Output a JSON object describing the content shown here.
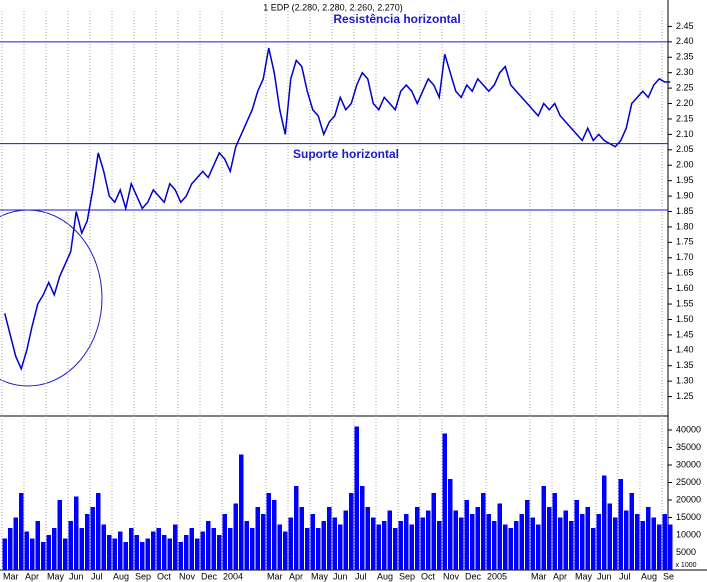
{
  "chart_data": {
    "type": "line",
    "title": "1 EDP (2.280, 2.280, 2.260, 2.270)",
    "categories": [
      "Mar",
      null,
      null,
      null,
      "Apr",
      null,
      null,
      null,
      "May",
      null,
      null,
      null,
      "Jun",
      null,
      null,
      null,
      "Jul",
      null,
      null,
      null,
      "Aug",
      null,
      null,
      null,
      "Sep",
      null,
      null,
      null,
      "Oct",
      null,
      null,
      null,
      "Nov",
      null,
      null,
      null,
      "Dec",
      null,
      null,
      null,
      "2004",
      null,
      null,
      null,
      null,
      null,
      null,
      null,
      "Mar",
      null,
      null,
      null,
      "Apr",
      null,
      null,
      null,
      "May",
      null,
      null,
      null,
      "Jun",
      null,
      null,
      null,
      "Jul",
      null,
      null,
      null,
      "Aug",
      null,
      null,
      null,
      "Sep",
      null,
      null,
      null,
      "Oct",
      null,
      null,
      null,
      "Nov",
      null,
      null,
      null,
      "Dec",
      null,
      null,
      null,
      "2005",
      null,
      null,
      null,
      null,
      null,
      null,
      null,
      "Mar",
      null,
      null,
      null,
      "Apr",
      null,
      null,
      null,
      "May",
      null,
      null,
      null,
      "Jun",
      null,
      null,
      null,
      "Jul",
      null,
      null,
      null,
      "Aug",
      null,
      null,
      null,
      "Se",
      null
    ],
    "series": [
      {
        "name": "EDP",
        "color": "#0000cc",
        "values": [
          1.52,
          1.45,
          1.38,
          1.34,
          1.4,
          1.48,
          1.55,
          1.58,
          1.62,
          1.58,
          1.64,
          1.68,
          1.72,
          1.85,
          1.78,
          1.82,
          1.92,
          2.04,
          1.98,
          1.9,
          1.88,
          1.92,
          1.86,
          1.94,
          1.9,
          1.86,
          1.88,
          1.92,
          1.9,
          1.88,
          1.94,
          1.92,
          1.88,
          1.9,
          1.94,
          1.96,
          1.98,
          1.96,
          2.0,
          2.04,
          2.02,
          1.98,
          2.06,
          2.1,
          2.14,
          2.18,
          2.24,
          2.28,
          2.38,
          2.3,
          2.18,
          2.1,
          2.28,
          2.34,
          2.32,
          2.24,
          2.18,
          2.16,
          2.1,
          2.14,
          2.16,
          2.22,
          2.18,
          2.2,
          2.26,
          2.3,
          2.28,
          2.2,
          2.18,
          2.22,
          2.2,
          2.18,
          2.24,
          2.26,
          2.24,
          2.2,
          2.24,
          2.28,
          2.26,
          2.22,
          2.36,
          2.3,
          2.24,
          2.22,
          2.26,
          2.24,
          2.28,
          2.26,
          2.24,
          2.26,
          2.3,
          2.32,
          2.26,
          2.24,
          2.22,
          2.2,
          2.18,
          2.16,
          2.2,
          2.18,
          2.2,
          2.16,
          2.14,
          2.12,
          2.1,
          2.08,
          2.12,
          2.08,
          2.1,
          2.08,
          2.07,
          2.06,
          2.08,
          2.12,
          2.2,
          2.22,
          2.24,
          2.22,
          2.26,
          2.28,
          2.27,
          2.27
        ]
      },
      {
        "name": "Volume",
        "color": "#0000ff",
        "axis": "y2",
        "values": [
          9000,
          12000,
          15000,
          22000,
          11000,
          9000,
          14000,
          8000,
          10000,
          12000,
          20000,
          9000,
          14000,
          21000,
          12000,
          16000,
          18000,
          22000,
          13000,
          10000,
          9000,
          11000,
          8000,
          12000,
          10000,
          8000,
          9000,
          11000,
          12000,
          10000,
          9000,
          13000,
          8000,
          10000,
          12000,
          9000,
          11000,
          14000,
          12000,
          10000,
          16000,
          12000,
          19000,
          33000,
          14000,
          12000,
          18000,
          16000,
          22000,
          20000,
          13000,
          11000,
          15000,
          24000,
          18000,
          12000,
          16000,
          12000,
          14000,
          18000,
          15000,
          13000,
          17000,
          22000,
          41000,
          24000,
          18000,
          15000,
          13000,
          14000,
          17000,
          12000,
          14000,
          16000,
          13000,
          18000,
          15000,
          17000,
          22000,
          14000,
          39000,
          26000,
          17000,
          15000,
          20000,
          16000,
          18000,
          22000,
          16000,
          14000,
          19000,
          13000,
          12000,
          14000,
          16000,
          20000,
          15000,
          13000,
          24000,
          18000,
          22000,
          15000,
          17000,
          14000,
          20000,
          16000,
          18000,
          12000,
          16000,
          27000,
          19000,
          15000,
          26000,
          17000,
          22000,
          16000,
          14000,
          18000,
          15000,
          13000,
          16000,
          13000
        ]
      }
    ],
    "ylim": [
      1.2,
      2.5
    ],
    "yticks": [
      {
        "value": 1.25,
        "label": "1.25"
      },
      {
        "value": 1.3,
        "label": "1.30"
      },
      {
        "value": 1.35,
        "label": "1.35"
      },
      {
        "value": 1.4,
        "label": "1.40"
      },
      {
        "value": 1.45,
        "label": "1.45"
      },
      {
        "value": 1.5,
        "label": "1.50"
      },
      {
        "value": 1.55,
        "label": "1.55"
      },
      {
        "value": 1.6,
        "label": "1.60"
      },
      {
        "value": 1.65,
        "label": "1.65"
      },
      {
        "value": 1.7,
        "label": "1.70"
      },
      {
        "value": 1.75,
        "label": "1.75"
      },
      {
        "value": 1.8,
        "label": "1.80"
      },
      {
        "value": 1.85,
        "label": "1.85"
      },
      {
        "value": 1.9,
        "label": "1.90"
      },
      {
        "value": 1.95,
        "label": "1.95"
      },
      {
        "value": 2,
        "label": "2.00"
      },
      {
        "value": 2.05,
        "label": "2.05"
      },
      {
        "value": 2.1,
        "label": "2.10"
      },
      {
        "value": 2.15,
        "label": "2.15"
      },
      {
        "value": 2.2,
        "label": "2.20"
      },
      {
        "value": 2.25,
        "label": "2.25"
      },
      {
        "value": 2.3,
        "label": "2.30"
      },
      {
        "value": 2.35,
        "label": "2.35"
      },
      {
        "value": 2.4,
        "label": "2.40"
      },
      {
        "value": 2.45,
        "label": "2.45"
      }
    ],
    "y2lim": [
      0,
      42000
    ],
    "y2ticks": [
      5000,
      10000,
      15000,
      20000,
      25000,
      30000,
      35000,
      40000
    ],
    "y2_label": "x 1000",
    "reference_lines": [
      {
        "value": 2.4,
        "label": "Resistência horizontal"
      },
      {
        "value": 2.07,
        "label": "Suporte horizontal"
      },
      {
        "value": 1.855
      }
    ],
    "grid": true
  }
}
